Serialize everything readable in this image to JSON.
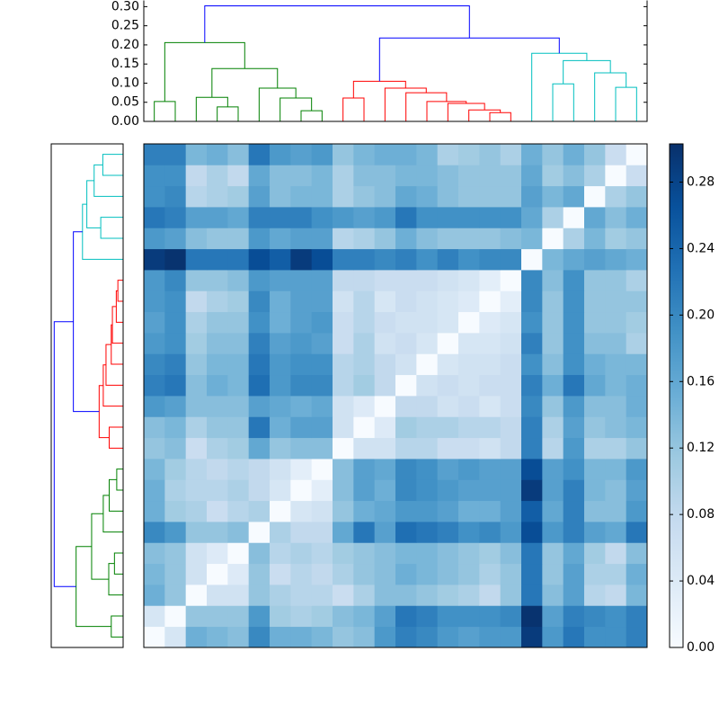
{
  "chart_data": {
    "type": "heatmap",
    "colormap": "Blues",
    "clim": [
      0,
      0.303
    ],
    "colorbar_ticks": [
      {
        "value": 0,
        "label": "0.00"
      },
      {
        "value": 0.04,
        "label": "0.04"
      },
      {
        "value": 0.08,
        "label": "0.08"
      },
      {
        "value": 0.12,
        "label": "0.12"
      },
      {
        "value": 0.16,
        "label": "0.16"
      },
      {
        "value": 0.2,
        "label": "0.20"
      },
      {
        "value": 0.24,
        "label": "0.24"
      },
      {
        "value": 0.28,
        "label": "0.28"
      }
    ],
    "z": [
      [
        0,
        0.05,
        0.15,
        0.14,
        0.13,
        0.2,
        0.15,
        0.15,
        0.14,
        0.12,
        0.13,
        0.18,
        0.21,
        0.2,
        0.18,
        0.17,
        0.18,
        0.18,
        0.29,
        0.18,
        0.22,
        0.19,
        0.19,
        0.21
      ],
      [
        0.05,
        0,
        0.12,
        0.12,
        0.12,
        0.18,
        0.11,
        0.1,
        0.11,
        0.13,
        0.14,
        0.17,
        0.22,
        0.21,
        0.19,
        0.19,
        0.19,
        0.2,
        0.3,
        0.17,
        0.21,
        0.2,
        0.19,
        0.21
      ],
      [
        0.15,
        0.12,
        0,
        0.06,
        0.06,
        0.12,
        0.1,
        0.09,
        0.09,
        0.07,
        0.1,
        0.13,
        0.13,
        0.12,
        0.11,
        0.1,
        0.08,
        0.12,
        0.22,
        0.13,
        0.17,
        0.09,
        0.08,
        0.14
      ],
      [
        0.14,
        0.12,
        0.06,
        0,
        0.04,
        0.12,
        0.07,
        0.09,
        0.08,
        0.1,
        0.12,
        0.13,
        0.15,
        0.14,
        0.13,
        0.12,
        0.1,
        0.12,
        0.22,
        0.12,
        0.17,
        0.1,
        0.1,
        0.15
      ],
      [
        0.13,
        0.12,
        0.06,
        0.04,
        0,
        0.13,
        0.09,
        0.1,
        0.09,
        0.11,
        0.12,
        0.13,
        0.14,
        0.14,
        0.13,
        0.12,
        0.11,
        0.13,
        0.22,
        0.12,
        0.16,
        0.11,
        0.08,
        0.13
      ],
      [
        0.2,
        0.18,
        0.12,
        0.12,
        0.13,
        0,
        0.1,
        0.08,
        0.08,
        0.16,
        0.22,
        0.17,
        0.23,
        0.22,
        0.21,
        0.19,
        0.2,
        0.18,
        0.27,
        0.18,
        0.21,
        0.17,
        0.16,
        0.22
      ],
      [
        0.15,
        0.11,
        0.1,
        0.07,
        0.09,
        0.1,
        0,
        0.05,
        0.06,
        0.12,
        0.15,
        0.16,
        0.18,
        0.18,
        0.17,
        0.15,
        0.15,
        0.17,
        0.25,
        0.16,
        0.21,
        0.13,
        0.13,
        0.18
      ],
      [
        0.15,
        0.1,
        0.09,
        0.09,
        0.1,
        0.08,
        0.05,
        0,
        0.03,
        0.13,
        0.17,
        0.15,
        0.2,
        0.19,
        0.18,
        0.17,
        0.17,
        0.17,
        0.29,
        0.17,
        0.21,
        0.14,
        0.13,
        0.17
      ],
      [
        0.14,
        0.11,
        0.09,
        0.08,
        0.09,
        0.08,
        0.06,
        0.03,
        0,
        0.13,
        0.17,
        0.16,
        0.2,
        0.19,
        0.17,
        0.18,
        0.17,
        0.17,
        0.27,
        0.17,
        0.19,
        0.14,
        0.14,
        0.18
      ],
      [
        0.12,
        0.13,
        0.07,
        0.1,
        0.11,
        0.16,
        0.12,
        0.13,
        0.13,
        0,
        0.06,
        0.06,
        0.09,
        0.09,
        0.07,
        0.07,
        0.06,
        0.08,
        0.21,
        0.09,
        0.18,
        0.1,
        0.1,
        0.12
      ],
      [
        0.13,
        0.14,
        0.1,
        0.12,
        0.12,
        0.22,
        0.15,
        0.17,
        0.17,
        0.06,
        0,
        0.04,
        0.11,
        0.1,
        0.1,
        0.09,
        0.09,
        0.08,
        0.21,
        0.1,
        0.17,
        0.12,
        0.13,
        0.14
      ],
      [
        0.18,
        0.17,
        0.13,
        0.13,
        0.13,
        0.17,
        0.16,
        0.15,
        0.16,
        0.06,
        0.04,
        0,
        0.08,
        0.08,
        0.06,
        0.07,
        0.05,
        0.07,
        0.2,
        0.12,
        0.18,
        0.13,
        0.13,
        0.15
      ],
      [
        0.21,
        0.22,
        0.13,
        0.15,
        0.14,
        0.23,
        0.18,
        0.2,
        0.2,
        0.09,
        0.11,
        0.08,
        0,
        0.06,
        0.07,
        0.06,
        0.07,
        0.07,
        0.21,
        0.15,
        0.22,
        0.16,
        0.14,
        0.15
      ],
      [
        0.2,
        0.21,
        0.12,
        0.14,
        0.14,
        0.22,
        0.18,
        0.19,
        0.19,
        0.09,
        0.1,
        0.08,
        0.06,
        0,
        0.05,
        0.06,
        0.06,
        0.07,
        0.19,
        0.13,
        0.19,
        0.15,
        0.14,
        0.14
      ],
      [
        0.18,
        0.19,
        0.11,
        0.13,
        0.13,
        0.21,
        0.17,
        0.18,
        0.17,
        0.07,
        0.1,
        0.06,
        0.07,
        0.05,
        0,
        0.05,
        0.05,
        0.06,
        0.21,
        0.12,
        0.19,
        0.13,
        0.13,
        0.1
      ],
      [
        0.17,
        0.19,
        0.1,
        0.12,
        0.12,
        0.19,
        0.15,
        0.17,
        0.18,
        0.07,
        0.09,
        0.07,
        0.06,
        0.06,
        0.05,
        0,
        0.04,
        0.05,
        0.19,
        0.12,
        0.19,
        0.12,
        0.12,
        0.11
      ],
      [
        0.18,
        0.19,
        0.08,
        0.1,
        0.11,
        0.2,
        0.15,
        0.17,
        0.17,
        0.06,
        0.09,
        0.05,
        0.07,
        0.06,
        0.05,
        0.04,
        0,
        0.03,
        0.2,
        0.12,
        0.19,
        0.12,
        0.12,
        0.12
      ],
      [
        0.18,
        0.2,
        0.12,
        0.12,
        0.13,
        0.18,
        0.17,
        0.17,
        0.17,
        0.08,
        0.08,
        0.07,
        0.07,
        0.07,
        0.06,
        0.05,
        0.03,
        0,
        0.2,
        0.13,
        0.19,
        0.12,
        0.12,
        0.1
      ],
      [
        0.29,
        0.3,
        0.22,
        0.22,
        0.22,
        0.27,
        0.25,
        0.29,
        0.27,
        0.21,
        0.21,
        0.2,
        0.21,
        0.19,
        0.21,
        0.19,
        0.2,
        0.2,
        0,
        0.14,
        0.16,
        0.17,
        0.16,
        0.15
      ],
      [
        0.18,
        0.17,
        0.13,
        0.12,
        0.12,
        0.18,
        0.16,
        0.17,
        0.17,
        0.09,
        0.1,
        0.12,
        0.15,
        0.13,
        0.12,
        0.12,
        0.12,
        0.13,
        0.14,
        0,
        0.1,
        0.14,
        0.11,
        0.12
      ],
      [
        0.22,
        0.21,
        0.17,
        0.17,
        0.16,
        0.21,
        0.21,
        0.21,
        0.19,
        0.18,
        0.17,
        0.18,
        0.22,
        0.19,
        0.19,
        0.19,
        0.19,
        0.19,
        0.16,
        0.1,
        0,
        0.16,
        0.13,
        0.15
      ],
      [
        0.19,
        0.2,
        0.09,
        0.1,
        0.11,
        0.17,
        0.13,
        0.14,
        0.14,
        0.1,
        0.12,
        0.13,
        0.16,
        0.15,
        0.13,
        0.12,
        0.12,
        0.12,
        0.17,
        0.14,
        0.16,
        0,
        0.1,
        0.12
      ],
      [
        0.19,
        0.19,
        0.08,
        0.1,
        0.08,
        0.16,
        0.13,
        0.13,
        0.14,
        0.1,
        0.13,
        0.13,
        0.14,
        0.14,
        0.13,
        0.12,
        0.12,
        0.12,
        0.16,
        0.11,
        0.13,
        0.1,
        0,
        0.07
      ],
      [
        0.21,
        0.21,
        0.14,
        0.15,
        0.13,
        0.22,
        0.18,
        0.17,
        0.18,
        0.12,
        0.14,
        0.15,
        0.15,
        0.14,
        0.1,
        0.11,
        0.12,
        0.1,
        0.15,
        0.12,
        0.15,
        0.12,
        0.07,
        0
      ]
    ],
    "dendrogram": {
      "ylim": [
        0,
        0.315
      ],
      "yticks": [
        {
          "value": 0,
          "label": "0.00"
        },
        {
          "value": 0.05,
          "label": "0.05"
        },
        {
          "value": 0.1,
          "label": "0.10"
        },
        {
          "value": 0.15,
          "label": "0.15"
        },
        {
          "value": 0.2,
          "label": "0.20"
        },
        {
          "value": 0.25,
          "label": "0.25"
        },
        {
          "value": 0.3,
          "label": "0.30"
        }
      ],
      "links": [
        {
          "left": 0,
          "right": 1,
          "height": 0.052,
          "color": "#008000"
        },
        {
          "left": 3,
          "right": 4,
          "height": 0.038,
          "color": "#008000"
        },
        {
          "left": 2,
          "right": 25,
          "height": 0.063,
          "color": "#008000"
        },
        {
          "left": 7,
          "right": 8,
          "height": 0.028,
          "color": "#008000"
        },
        {
          "left": 6,
          "right": 27,
          "height": 0.061,
          "color": "#008000"
        },
        {
          "left": 5,
          "right": 28,
          "height": 0.087,
          "color": "#008000"
        },
        {
          "left": 26,
          "right": 29,
          "height": 0.138,
          "color": "#008000"
        },
        {
          "left": 24,
          "right": 30,
          "height": 0.206,
          "color": "#008000"
        },
        {
          "left": 9,
          "right": 10,
          "height": 0.061,
          "color": "#ff0000"
        },
        {
          "left": 16,
          "right": 17,
          "height": 0.023,
          "color": "#ff0000"
        },
        {
          "left": 15,
          "right": 33,
          "height": 0.03,
          "color": "#ff0000"
        },
        {
          "left": 14,
          "right": 34,
          "height": 0.047,
          "color": "#ff0000"
        },
        {
          "left": 13,
          "right": 35,
          "height": 0.052,
          "color": "#ff0000"
        },
        {
          "left": 12,
          "right": 36,
          "height": 0.075,
          "color": "#ff0000"
        },
        {
          "left": 11,
          "right": 37,
          "height": 0.087,
          "color": "#ff0000"
        },
        {
          "left": 32,
          "right": 38,
          "height": 0.105,
          "color": "#ff0000"
        },
        {
          "left": 19,
          "right": 20,
          "height": 0.098,
          "color": "#00bfbf"
        },
        {
          "left": 22,
          "right": 23,
          "height": 0.089,
          "color": "#00bfbf"
        },
        {
          "left": 21,
          "right": 41,
          "height": 0.127,
          "color": "#00bfbf"
        },
        {
          "left": 40,
          "right": 42,
          "height": 0.159,
          "color": "#00bfbf"
        },
        {
          "left": 18,
          "right": 43,
          "height": 0.178,
          "color": "#00bfbf"
        },
        {
          "left": 39,
          "right": 44,
          "height": 0.218,
          "color": "#0000ff"
        },
        {
          "left": 31,
          "right": 45,
          "height": 0.302,
          "color": "#0000ff"
        }
      ]
    }
  }
}
